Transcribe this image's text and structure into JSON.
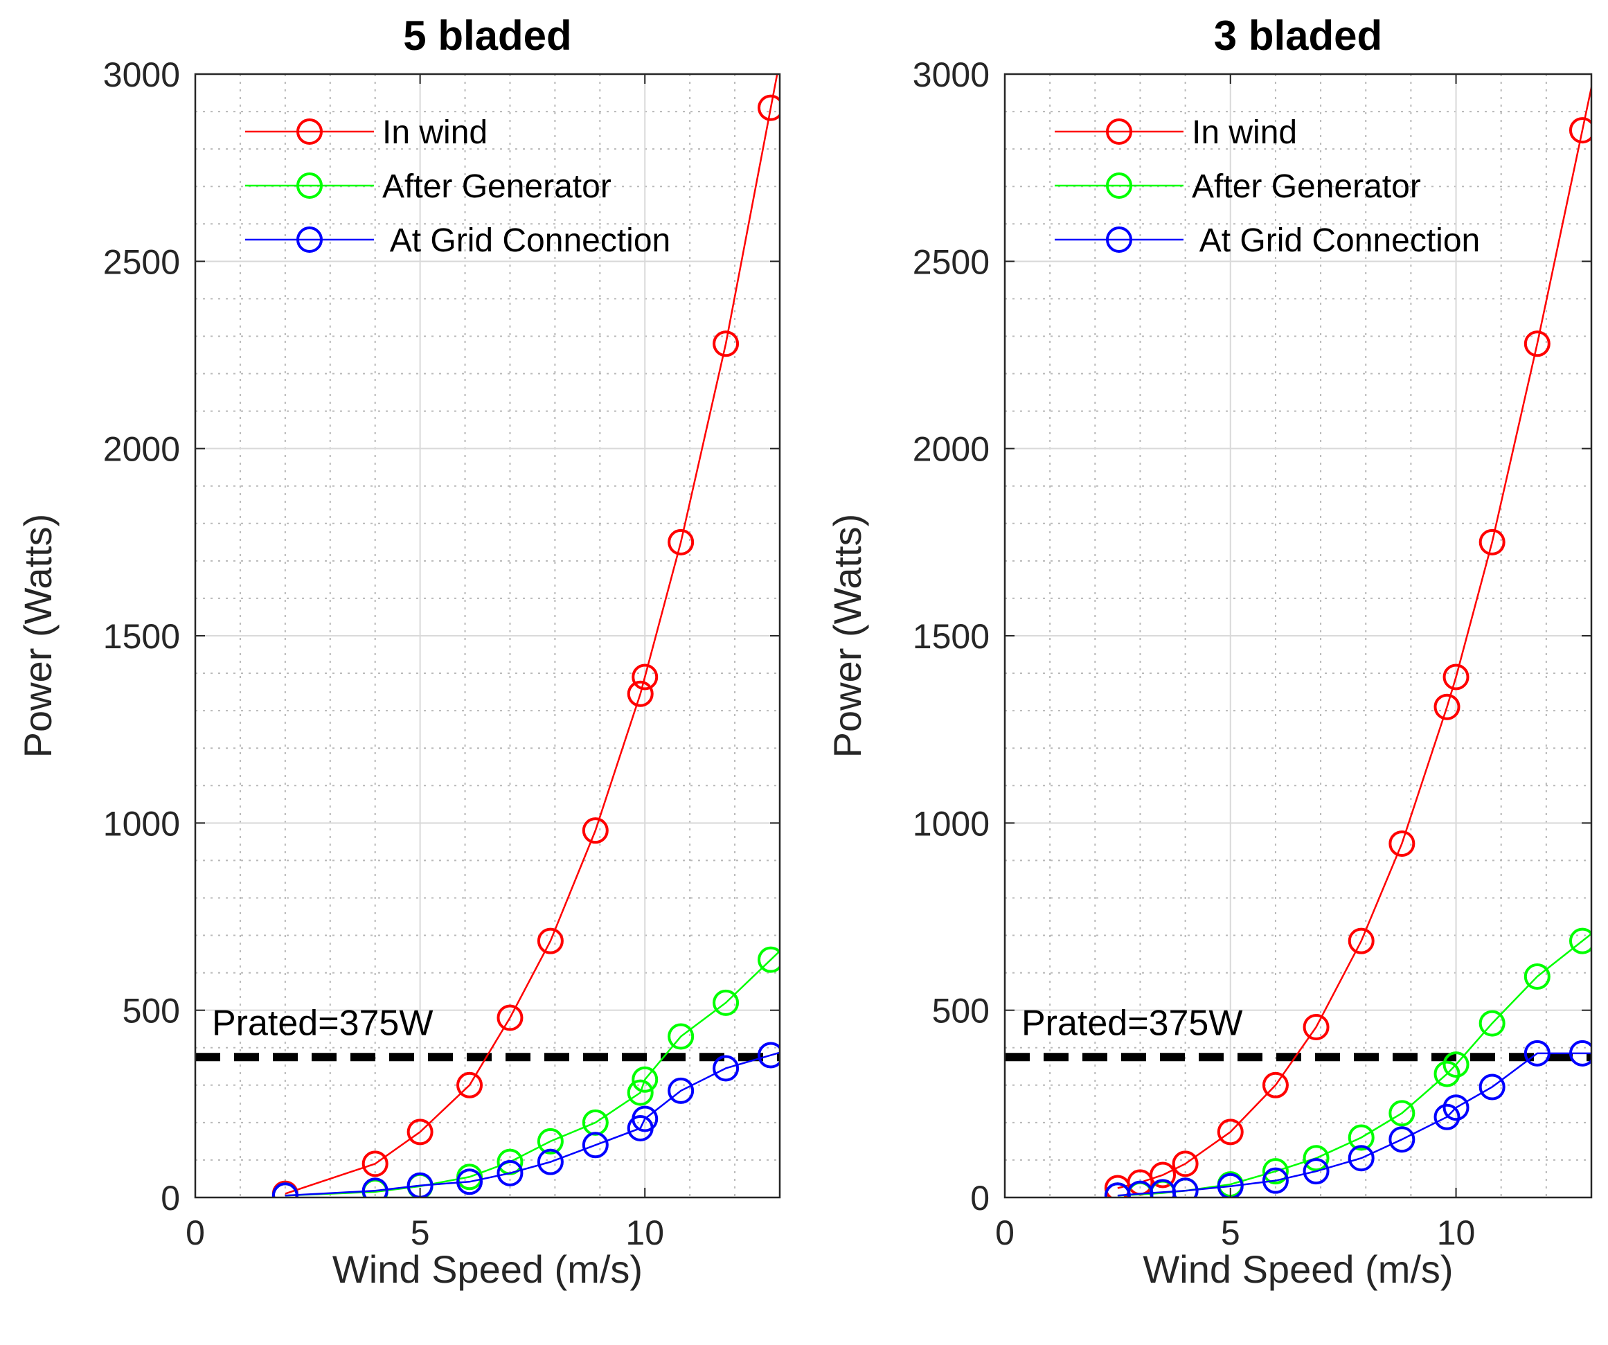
{
  "chart_data": [
    {
      "type": "line",
      "title": "5 bladed",
      "xlabel": "Wind Speed (m/s)",
      "ylabel": "Power (Watts)",
      "xlim": [
        0,
        13
      ],
      "ylim": [
        0,
        3000
      ],
      "xticks": [
        0,
        5,
        10
      ],
      "xtick_labels": [
        "0",
        "5",
        "10"
      ],
      "yticks": [
        0,
        500,
        1000,
        1500,
        2000,
        2500,
        3000
      ],
      "ytick_labels": [
        "0",
        "500",
        "1000",
        "1500",
        "2000",
        "2500",
        "3000"
      ],
      "grid": true,
      "legend_position": "top-left",
      "series": [
        {
          "name": "In wind",
          "color": "#ff0000",
          "x": [
            2,
            4,
            5,
            6.1,
            7,
            7.9,
            8.9,
            9.9,
            10,
            10.8,
            11.8,
            12.8
          ],
          "y": [
            10,
            90,
            175,
            300,
            480,
            685,
            980,
            1345,
            1390,
            1750,
            2280,
            2910
          ]
        },
        {
          "name": "After Generator",
          "color": "#00ff00",
          "x": [
            2,
            4,
            5,
            6.1,
            7,
            7.9,
            8.9,
            9.9,
            10,
            10.8,
            11.8,
            12.8
          ],
          "y": [
            5,
            15,
            30,
            55,
            95,
            150,
            200,
            280,
            315,
            430,
            520,
            635
          ]
        },
        {
          "name": " At Grid Connection",
          "color": "#0000ff",
          "x": [
            2,
            4,
            5,
            6.1,
            7,
            7.9,
            8.9,
            9.9,
            10,
            10.8,
            11.8,
            12.8
          ],
          "y": [
            5,
            18,
            32,
            42,
            65,
            95,
            140,
            185,
            210,
            285,
            345,
            380
          ]
        }
      ],
      "reference_line": {
        "y": 375,
        "label": "Prated=375W",
        "color": "#000000"
      }
    },
    {
      "type": "line",
      "title": "3 bladed",
      "xlabel": "Wind Speed (m/s)",
      "ylabel": "Power (Watts)",
      "xlim": [
        0,
        13
      ],
      "ylim": [
        0,
        3000
      ],
      "xticks": [
        0,
        5,
        10
      ],
      "xtick_labels": [
        "0",
        "5",
        "10"
      ],
      "yticks": [
        0,
        500,
        1000,
        1500,
        2000,
        2500,
        3000
      ],
      "ytick_labels": [
        "0",
        "500",
        "1000",
        "1500",
        "2000",
        "2500",
        "3000"
      ],
      "grid": true,
      "legend_position": "top-left",
      "series": [
        {
          "name": "In wind",
          "color": "#ff0000",
          "x": [
            2.5,
            3,
            3.5,
            4,
            5,
            6,
            6.9,
            7.9,
            8.8,
            9.8,
            10,
            10.8,
            11.8,
            12.8
          ],
          "y": [
            25,
            40,
            60,
            90,
            175,
            300,
            455,
            685,
            945,
            1310,
            1390,
            1750,
            2280,
            2850
          ]
        },
        {
          "name": "After Generator",
          "color": "#00ff00",
          "x": [
            2.5,
            3,
            3.5,
            4,
            5,
            6,
            6.9,
            7.9,
            8.8,
            9.8,
            10,
            10.8,
            11.8,
            12.8
          ],
          "y": [
            5,
            8,
            12,
            18,
            35,
            70,
            105,
            160,
            225,
            330,
            355,
            465,
            590,
            685
          ]
        },
        {
          "name": " At Grid Connection",
          "color": "#0000ff",
          "x": [
            2.5,
            3,
            3.5,
            4,
            5,
            6,
            6.9,
            7.9,
            8.8,
            9.8,
            10,
            10.8,
            11.8,
            12.8
          ],
          "y": [
            5,
            10,
            14,
            18,
            30,
            45,
            70,
            105,
            155,
            215,
            240,
            295,
            385,
            385
          ]
        }
      ],
      "reference_line": {
        "y": 375,
        "label": "Prated=375W",
        "color": "#000000"
      }
    }
  ]
}
